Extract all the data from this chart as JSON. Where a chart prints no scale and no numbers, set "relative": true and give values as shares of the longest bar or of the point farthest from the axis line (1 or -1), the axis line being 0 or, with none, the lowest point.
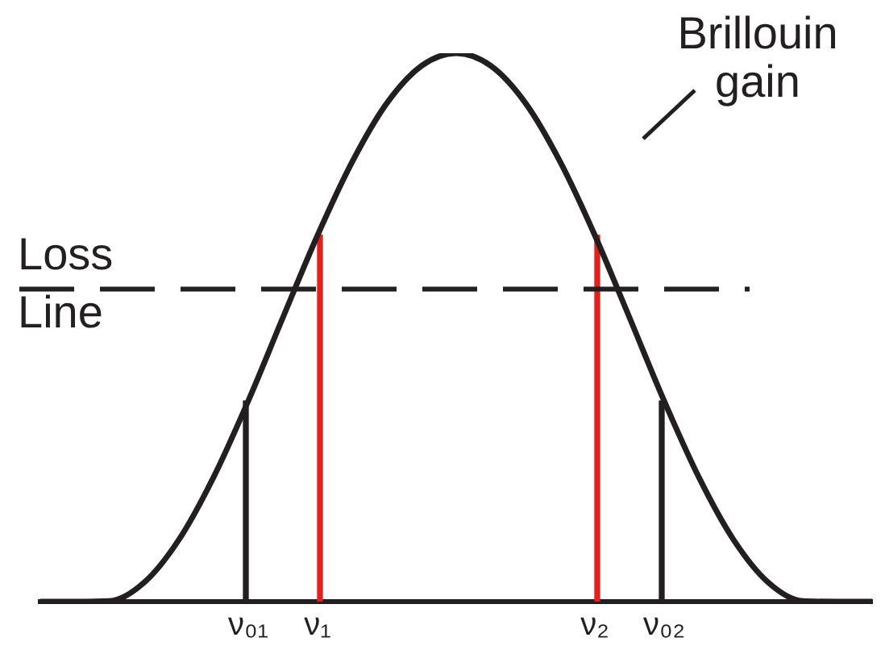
{
  "chart_data": {
    "type": "line",
    "relative": true,
    "legend": false,
    "grid": false,
    "marker": "none",
    "tick_labels": "x",
    "categories": [
      null,
      null,
      null,
      null,
      null,
      null,
      "ν₀₁",
      null,
      "ν₁",
      null,
      null,
      null,
      null,
      null,
      null,
      null,
      "ν₂",
      null,
      "ν₀₂",
      null,
      null,
      null,
      null,
      null,
      null
    ],
    "series": [
      {
        "color": "#231f20",
        "values": [
          0,
          0,
          0.001,
          0.035,
          0.113,
          0.227,
          0.366,
          0.518,
          0.668,
          0.802,
          0.909,
          0.977,
          1,
          0.977,
          0.909,
          0.802,
          0.668,
          0.518,
          0.366,
          0.227,
          0.113,
          0.035,
          0.001,
          0,
          0
        ]
      },
      {
        "type": "bar",
        "color": "#231f20",
        "values": [
          null,
          null,
          null,
          null,
          null,
          null,
          0.366,
          null,
          null,
          null,
          null,
          null,
          null,
          null,
          null,
          null,
          null,
          null,
          0.366,
          null,
          null,
          null,
          null,
          null,
          null
        ]
      },
      {
        "type": "bar",
        "color": "#e3201b",
        "values": [
          null,
          null,
          null,
          null,
          null,
          null,
          null,
          null,
          0.668,
          null,
          null,
          null,
          null,
          null,
          null,
          null,
          0.668,
          null,
          null,
          null,
          null,
          null,
          null,
          null,
          null
        ]
      }
    ],
    "ref_lines": [
      {
        "axis": "y",
        "value": 0.57,
        "label": "Loss Line",
        "line_style": "dashed",
        "color": "#231f20"
      }
    ],
    "annotations": [
      "Brillouin gain"
    ]
  }
}
